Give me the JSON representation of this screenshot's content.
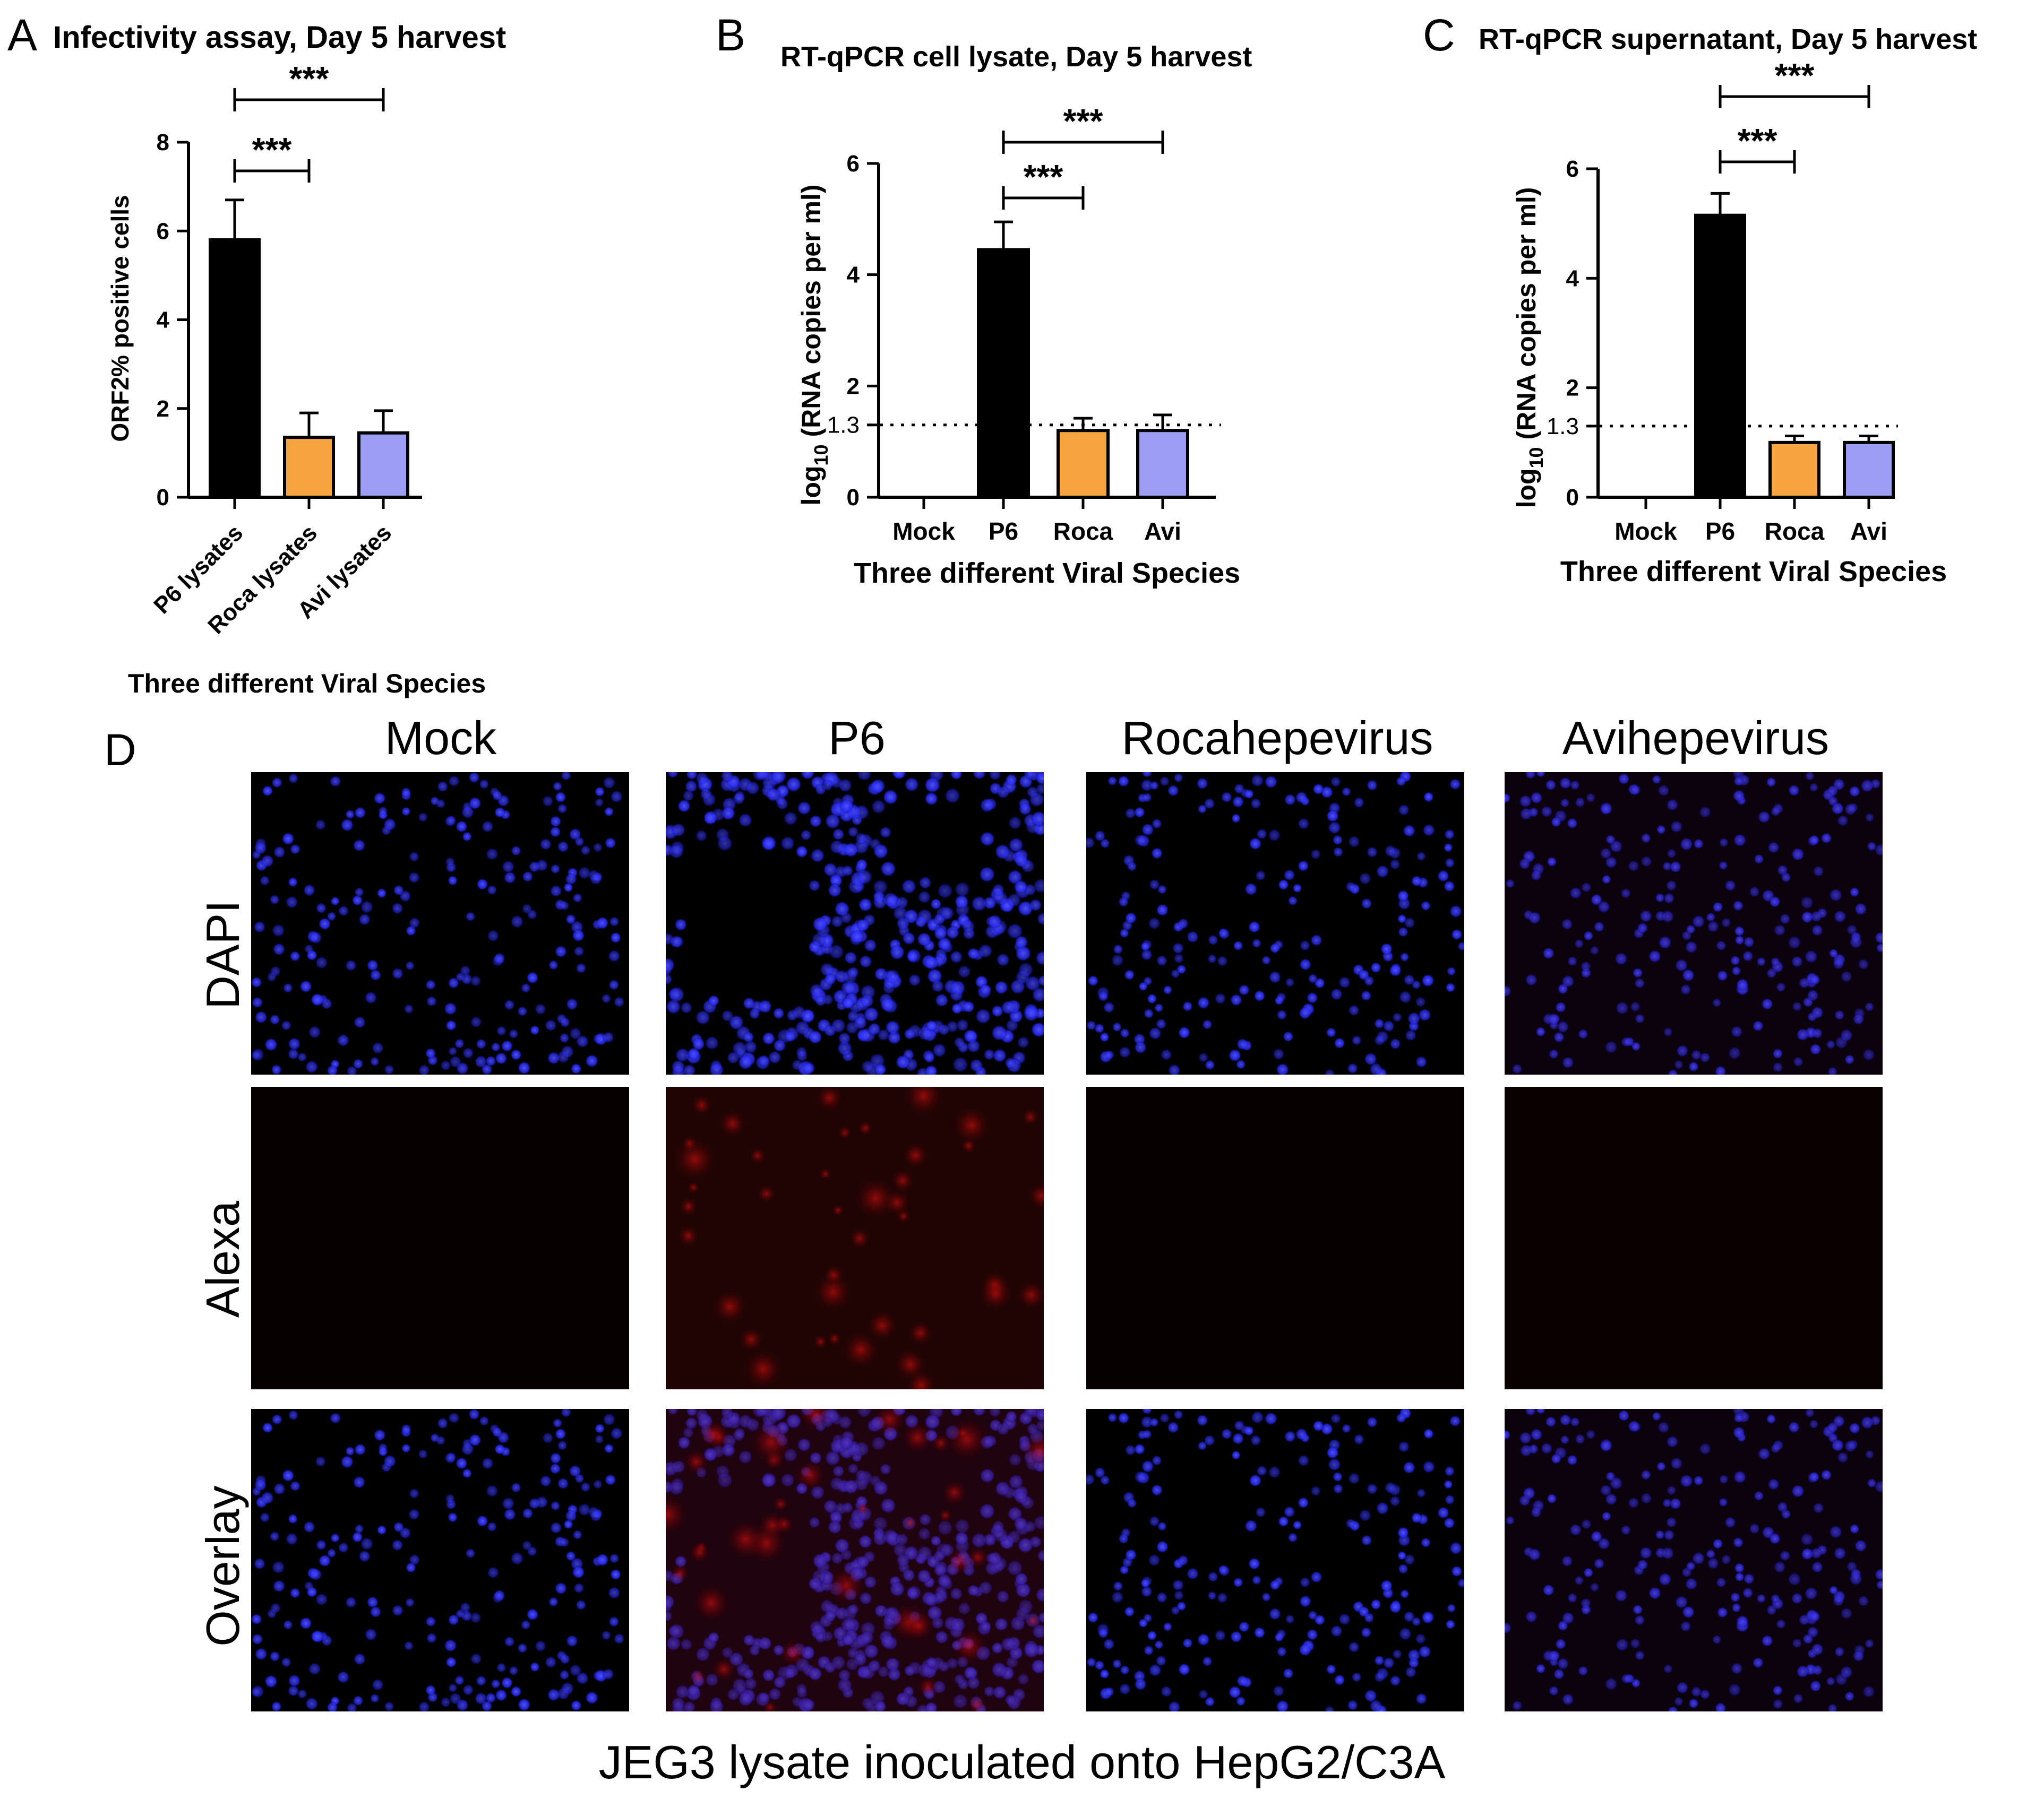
{
  "panels": {
    "A": "A",
    "B": "B",
    "C": "C",
    "D": "D"
  },
  "chart_data": [
    {
      "id": "A",
      "type": "bar",
      "title": "Infectivity assay, Day 5 harvest",
      "ylabel": "ORF2% positive cells",
      "xlabel": "Three different Viral Species",
      "categories": [
        "P6 lysates",
        "Roca lysates",
        "Avi lysates"
      ],
      "values": [
        5.8,
        1.35,
        1.45
      ],
      "errors": [
        0.9,
        0.55,
        0.5
      ],
      "colors": [
        "#000000",
        "#f7a440",
        "#9d9df5"
      ],
      "ylim": [
        0,
        8
      ],
      "yticks": [
        0,
        2,
        4,
        6,
        8
      ],
      "x_rotated": true,
      "significance": [
        {
          "from": 0,
          "to": 1,
          "label": "***"
        },
        {
          "from": 0,
          "to": 2,
          "label": "***"
        }
      ]
    },
    {
      "id": "B",
      "type": "bar",
      "title": "RT-qPCR cell lysate, Day 5 harvest",
      "ylabel": "log10 (RNA copies per ml)",
      "ylabel_main": "log",
      "ylabel_sub": "10",
      "ylabel_rest": " (RNA copies per ml)",
      "xlabel": "Three different Viral Species",
      "categories": [
        "Mock",
        "P6",
        "Roca",
        "Avi"
      ],
      "values": [
        0,
        4.45,
        1.2,
        1.2
      ],
      "errors": [
        0,
        0.5,
        0.22,
        0.28
      ],
      "colors": [
        "#000000",
        "#000000",
        "#f7a440",
        "#9d9df5"
      ],
      "ylim": [
        0,
        6
      ],
      "yticks": [
        0,
        2,
        4,
        6
      ],
      "reference_line": {
        "value": 1.3,
        "label": "1.3"
      },
      "x_rotated": false,
      "significance": [
        {
          "from": 1,
          "to": 2,
          "label": "***"
        },
        {
          "from": 1,
          "to": 3,
          "label": "***"
        }
      ]
    },
    {
      "id": "C",
      "type": "bar",
      "title": "RT-qPCR supernatant, Day 5 harvest",
      "ylabel": "log10 (RNA copies per ml)",
      "ylabel_main": "log",
      "ylabel_sub": "10",
      "ylabel_rest": " (RNA copies per ml)",
      "xlabel": "Three different Viral Species",
      "categories": [
        "Mock",
        "P6",
        "Roca",
        "Avi"
      ],
      "values": [
        0,
        5.15,
        1.0,
        1.0
      ],
      "errors": [
        0,
        0.4,
        0.12,
        0.12
      ],
      "colors": [
        "#000000",
        "#000000",
        "#f7a440",
        "#9d9df5"
      ],
      "ylim": [
        0,
        6
      ],
      "yticks": [
        0,
        2,
        4,
        6
      ],
      "reference_line": {
        "value": 1.3,
        "label": "1.3"
      },
      "x_rotated": false,
      "significance": [
        {
          "from": 1,
          "to": 2,
          "label": "***"
        },
        {
          "from": 1,
          "to": 3,
          "label": "***"
        }
      ]
    }
  ],
  "microscopy": {
    "columns": [
      "Mock",
      "P6",
      "Rocahepevirus",
      "Avihepevirus"
    ],
    "rows": [
      "DAPI",
      "Alexa",
      "Overlay"
    ],
    "caption": "JEG3 lysate inoculated onto HepG2/C3A",
    "stain_colors": {
      "dapi": "#2a2cff",
      "alexa": "#e01010",
      "background": "#000000"
    },
    "alexa_signal_level": [
      0.0,
      1.0,
      0.0,
      0.05
    ]
  }
}
